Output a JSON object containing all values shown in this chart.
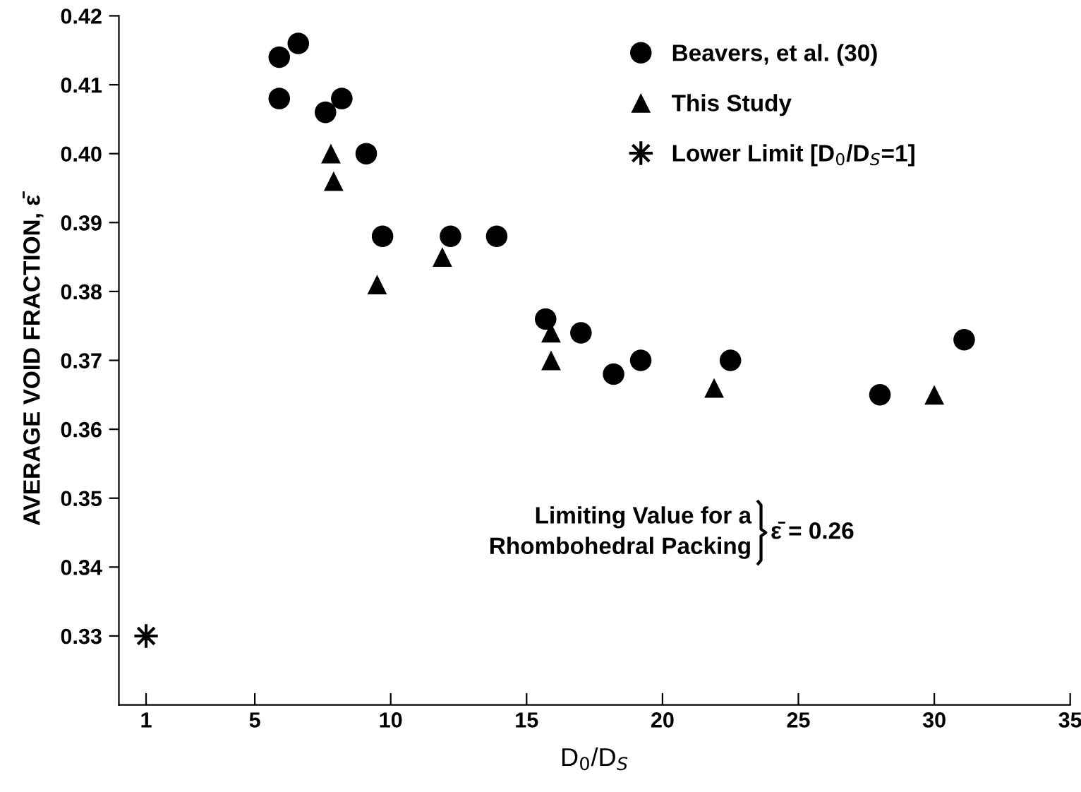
{
  "chart_data": {
    "type": "scatter",
    "xlabel": "D$_{0}$/D$_{S}$",
    "ylabel": "AVERAGE VOID FRACTION, ε̄",
    "xlim": [
      0,
      35
    ],
    "xticks": [
      1,
      5,
      10,
      15,
      20,
      25,
      30,
      35
    ],
    "ylim": [
      0.32,
      0.42
    ],
    "yticks": [
      0.33,
      0.34,
      0.35,
      0.36,
      0.37,
      0.38,
      0.39,
      {
        "value": 0.4,
        "label": "0.40"
      },
      0.41,
      0.42
    ],
    "grid": false,
    "legend": "top right",
    "series": [
      {
        "name": "Beavers, et al. (30)",
        "color": "#000000",
        "marker": "circle",
        "x": [
          5.9,
          6.6,
          5.9,
          7.6,
          8.2,
          9.1,
          9.7,
          12.2,
          13.9,
          15.7,
          17.0,
          18.2,
          19.2,
          22.5,
          28.0,
          31.1
        ],
        "values": [
          0.414,
          0.416,
          0.408,
          0.406,
          0.408,
          0.4,
          0.388,
          0.388,
          0.388,
          0.376,
          0.374,
          0.368,
          0.37,
          0.37,
          0.365,
          0.373
        ]
      },
      {
        "name": "This Study",
        "color": "#000000",
        "marker": "triangle",
        "x": [
          7.8,
          7.9,
          9.5,
          11.9,
          15.9,
          15.9,
          21.9,
          30.0
        ],
        "values": [
          0.4,
          0.396,
          0.381,
          0.385,
          0.374,
          0.37,
          0.366,
          0.365
        ]
      },
      {
        "name": "Lower Limit [D$_{0}$/D$_{S}$=1]",
        "color": "#000000",
        "marker": "star",
        "x": [
          1
        ],
        "values": [
          0.33
        ]
      }
    ],
    "annotations": [
      "Limiting Value for a\nRhombohedral Packing",
      "ε̄ = 0.26"
    ]
  }
}
